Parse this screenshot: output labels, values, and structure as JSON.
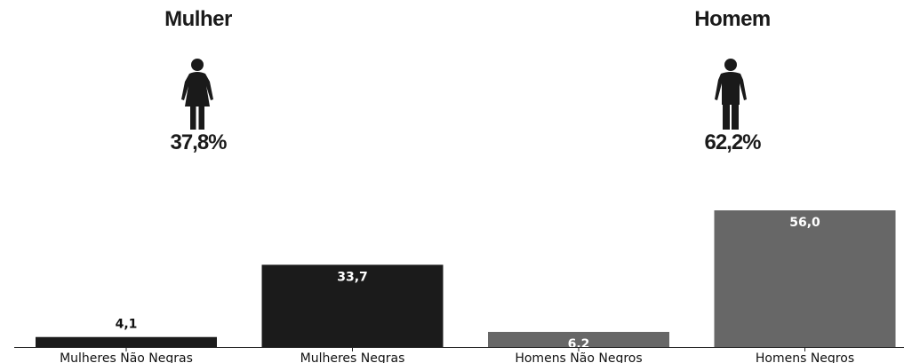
{
  "header": {
    "female": {
      "title": "Mulher",
      "percent": "37,8%",
      "icon": "female-person-icon"
    },
    "male": {
      "title": "Homem",
      "percent": "62,2%",
      "icon": "male-person-icon"
    }
  },
  "colors": {
    "dark": "#1b1b1b",
    "gray": "#676767",
    "label_dark": "#111111",
    "label_light": "#ffffff"
  },
  "chart_data": {
    "type": "bar",
    "categories": [
      "Mulheres Não Negras",
      "Mulheres Negras",
      "Homens Não Negros",
      "Homens Negros"
    ],
    "values": [
      4.1,
      33.7,
      6.2,
      56.0
    ],
    "data_labels": [
      "4,1",
      "33,7",
      "6,2",
      "56,0"
    ],
    "bar_colors": [
      "#1b1b1b",
      "#1b1b1b",
      "#676767",
      "#676767"
    ],
    "ylim": [
      0,
      56.0
    ],
    "title": "",
    "xlabel": "",
    "ylabel": "",
    "grid": false,
    "legend": "none"
  }
}
